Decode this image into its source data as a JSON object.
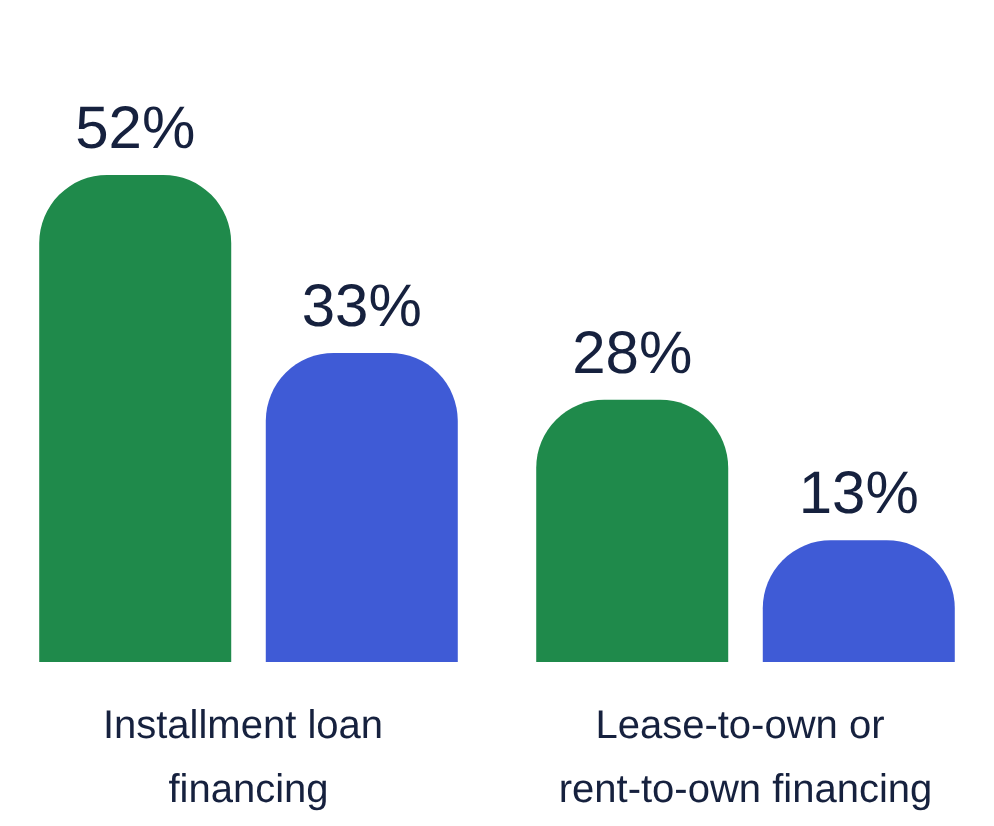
{
  "chart_data": {
    "type": "bar",
    "categories": [
      "Installment loan financing",
      "Lease-to-own or rent-to-own financing"
    ],
    "series": [
      {
        "color": "#1f8a4b",
        "values": [
          52,
          28
        ],
        "value_labels": [
          "52%",
          "28%"
        ]
      },
      {
        "color": "#3f5bd6",
        "values": [
          33,
          13
        ],
        "value_labels": [
          "33%",
          "13%"
        ]
      }
    ]
  }
}
